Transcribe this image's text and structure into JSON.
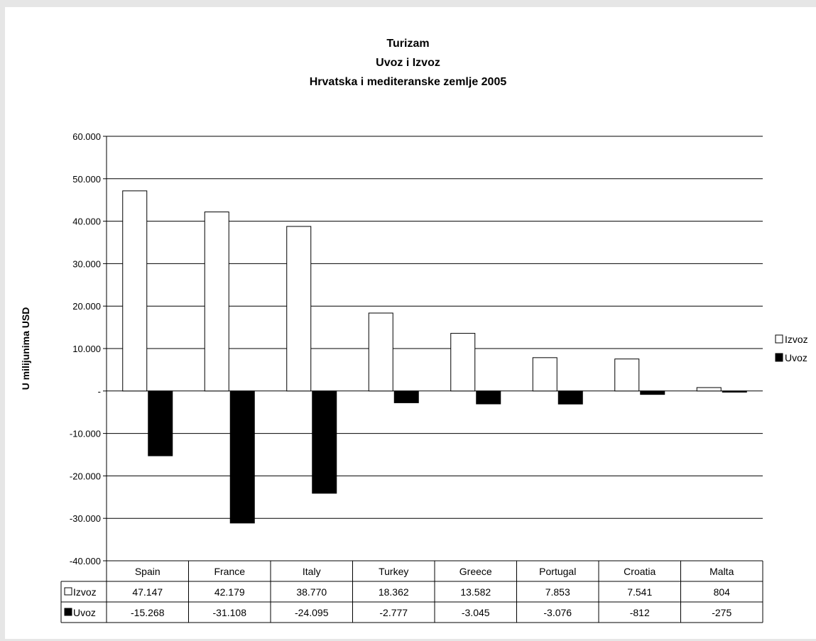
{
  "chart_data": {
    "type": "bar",
    "title_lines": [
      "Turizam",
      "Uvoz i Izvoz",
      "Hrvatska i mediteranske zemlje 2005"
    ],
    "ylabel": "U milijunima USD",
    "xlabel": "",
    "categories": [
      "Spain",
      "France",
      "Italy",
      "Turkey",
      "Greece",
      "Portugal",
      "Croatia",
      "Malta"
    ],
    "series": [
      {
        "name": "Izvoz",
        "color": "#ffffff",
        "values": [
          47147,
          42179,
          38770,
          18362,
          13582,
          7853,
          7541,
          804
        ],
        "labels": [
          "47.147",
          "42.179",
          "38.770",
          "18.362",
          "13.582",
          "7.853",
          "7.541",
          "804"
        ]
      },
      {
        "name": "Uvoz",
        "color": "#000000",
        "values": [
          -15268,
          -31108,
          -24095,
          -2777,
          -3045,
          -3076,
          -812,
          -275
        ],
        "labels": [
          "-15.268",
          "-31.108",
          "-24.095",
          "-2.777",
          "-3.045",
          "-3.076",
          "-812",
          "-275"
        ]
      }
    ],
    "ylim": [
      -40000,
      60000
    ],
    "yticks": [
      60000,
      50000,
      40000,
      30000,
      20000,
      10000,
      0,
      -10000,
      -20000,
      -30000,
      -40000
    ],
    "ytick_labels": [
      "60.000",
      "50.000",
      "40.000",
      "30.000",
      "20.000",
      "10.000",
      "-",
      "-10.000",
      "-20.000",
      "-30.000",
      "-40.000"
    ],
    "grid": true,
    "legend": "right",
    "data_table": true
  }
}
